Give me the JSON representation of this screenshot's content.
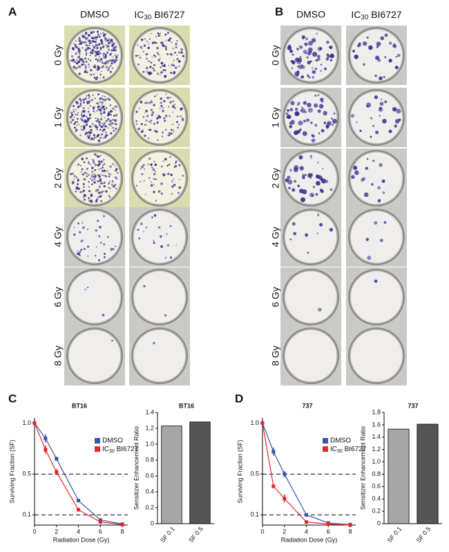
{
  "panel_labels": [
    "A",
    "B",
    "C",
    "D"
  ],
  "plates": [
    {
      "columns": [
        "DMSO",
        "IC30 BI6727"
      ],
      "rows": [
        "0 Gy",
        "1 Gy",
        "2 Gy",
        "4 Gy",
        "6 Gy",
        "8 Gy"
      ]
    },
    {
      "columns": [
        "DMSO",
        "IC30 BI6727"
      ],
      "rows": [
        "0 Gy",
        "1 Gy",
        "2 Gy",
        "4 Gy",
        "6 Gy",
        "8 Gy"
      ]
    }
  ],
  "chart_data": [
    {
      "type": "line",
      "title": "BT16",
      "x_label": "Radiation Dose (Gy)",
      "y_label": "Surviving Fraction (SF)",
      "x": [
        0,
        1,
        2,
        4,
        6,
        8
      ],
      "xlim": [
        0,
        8.5
      ],
      "xticks": [
        0,
        2,
        4,
        6,
        8
      ],
      "ylim": [
        0,
        1.05
      ],
      "yticks": [
        0.1,
        0.5,
        {
          "value": 1,
          "label": "1.0"
        }
      ],
      "reference_lines": [
        0.5,
        0.1
      ],
      "legend": "right",
      "series": [
        {
          "name": "DMSO",
          "color": "#3a55a4",
          "values": [
            1.0,
            0.85,
            0.65,
            0.24,
            0.05,
            0.01
          ],
          "errors": [
            0,
            0.04,
            0.02,
            0.01,
            0.01,
            0
          ]
        },
        {
          "name": "IC30 BI6727",
          "color": "#e8262a",
          "values": [
            1.0,
            0.74,
            0.52,
            0.15,
            0.03,
            0.005
          ],
          "errors": [
            0,
            0.04,
            0.03,
            0.01,
            0.005,
            0
          ]
        }
      ]
    },
    {
      "type": "bar",
      "title": "BT16",
      "y_label": "Sensitizer Enhancement Ratio",
      "categories": [
        "SF 0.1",
        "SF 0.5"
      ],
      "values": [
        1.23,
        1.28
      ],
      "colors": [
        "#a6a6a6",
        "#555555"
      ],
      "ylim": [
        0,
        1.4
      ],
      "yticks": [
        0,
        0.2,
        0.4,
        0.6,
        0.8,
        {
          "value": 1,
          "label": "1.0"
        },
        1.2,
        1.4
      ]
    },
    {
      "type": "line",
      "title": "737",
      "x_label": "Radiation Dose (Gy)",
      "y_label": "Surviving Fraction (SF)",
      "x": [
        0,
        1,
        2,
        4,
        6,
        8
      ],
      "xlim": [
        0,
        8.5
      ],
      "xticks": [
        0,
        2,
        4,
        6,
        8
      ],
      "ylim": [
        0,
        1.05
      ],
      "yticks": [
        0.1,
        0.5,
        {
          "value": 1,
          "label": "1.0"
        }
      ],
      "reference_lines": [
        0.5,
        0.1
      ],
      "legend": "right",
      "series": [
        {
          "name": "DMSO",
          "color": "#3a55a4",
          "values": [
            1.0,
            0.72,
            0.5,
            0.1,
            0.02,
            0.005
          ],
          "errors": [
            0,
            0.04,
            0.03,
            0.01,
            0.005,
            0
          ]
        },
        {
          "name": "IC30 BI6727",
          "color": "#e8262a",
          "values": [
            1.0,
            0.38,
            0.26,
            0.03,
            0.01,
            0.0
          ],
          "errors": [
            0,
            0.02,
            0.04,
            0.005,
            0.005,
            0
          ]
        }
      ]
    },
    {
      "type": "bar",
      "title": "737",
      "y_label": "Sensitizer Enhancement Ratio",
      "categories": [
        "SF 0.1",
        "SF 0.5"
      ],
      "values": [
        1.53,
        1.61
      ],
      "colors": [
        "#a6a6a6",
        "#555555"
      ],
      "ylim": [
        0,
        1.8
      ],
      "yticks": [
        0,
        0.2,
        0.4,
        0.6,
        0.8,
        {
          "value": 1,
          "label": "1.0"
        },
        1.2,
        1.4,
        1.6,
        1.8
      ]
    }
  ]
}
